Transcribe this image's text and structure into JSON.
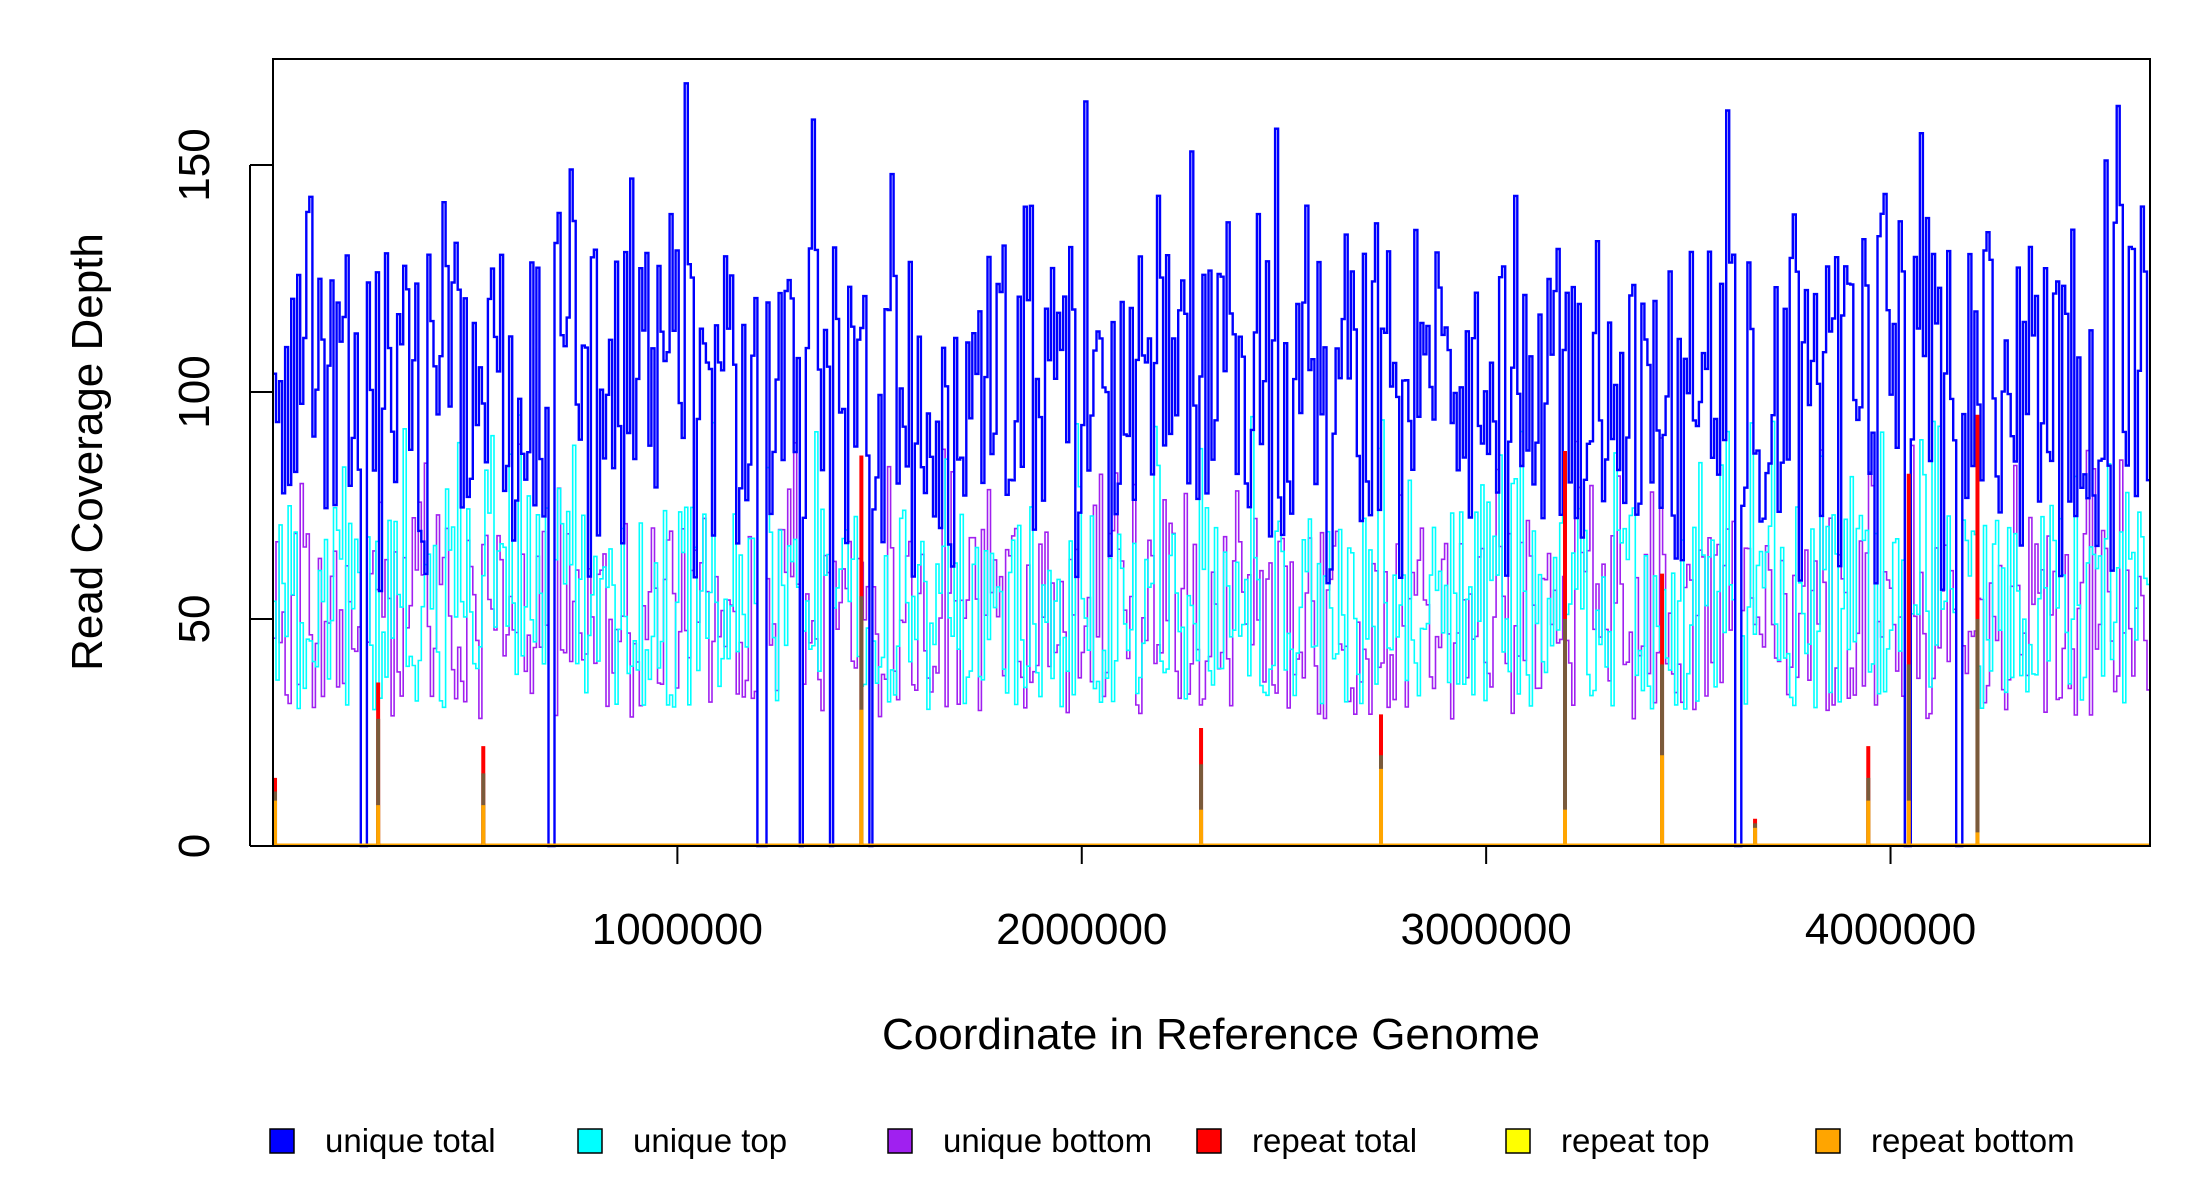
{
  "chart_data": {
    "type": "line",
    "step": true,
    "xlabel": "Coordinate in Reference Genome",
    "ylabel": "Read Coverage Depth",
    "xlim": [
      1,
      4641652
    ],
    "ylim": [
      0,
      170
    ],
    "x_ticks": [
      1000000,
      2000000,
      3000000,
      4000000
    ],
    "x_tick_labels": [
      "1000000",
      "2000000",
      "3000000",
      "4000000"
    ],
    "y_ticks": [
      0,
      50,
      100,
      150
    ],
    "y_tick_labels": [
      "0",
      "50",
      "100",
      "150"
    ],
    "grid": false,
    "legend_position": "bottom",
    "series": [
      {
        "name": "unique total",
        "color": "#0000FF",
        "style": "step"
      },
      {
        "name": "unique top",
        "color": "#00FFFF",
        "style": "step"
      },
      {
        "name": "unique bottom",
        "color": "#A020F0",
        "style": "step"
      },
      {
        "name": "repeat total",
        "color": "#FF0000",
        "style": "spikes"
      },
      {
        "name": "repeat top",
        "color": "#FFFF00",
        "style": "spikes"
      },
      {
        "name": "repeat bottom",
        "color": "#FFA500",
        "style": "spikes"
      }
    ],
    "dropouts": [
      {
        "x": [
          215000,
          225000
        ]
      },
      {
        "x": [
          680000,
          690000
        ]
      },
      {
        "x": [
          1195000,
          1215000
        ]
      },
      {
        "x": [
          1300000,
          1310000
        ]
      },
      {
        "x": [
          1375000,
          1385000
        ]
      },
      {
        "x": [
          1470000,
          1480000
        ]
      },
      {
        "x": [
          3610000,
          3625000
        ]
      },
      {
        "x": [
          4035000,
          4048000
        ]
      },
      {
        "x": [
          4160000,
          4175000
        ]
      }
    ],
    "total_peaks": [
      {
        "x": 1020000,
        "y": 168
      },
      {
        "x": 2010000,
        "y": 164
      },
      {
        "x": 3590000,
        "y": 162
      },
      {
        "x": 4560000,
        "y": 163
      },
      {
        "x": 1330000,
        "y": 160
      },
      {
        "x": 2480000,
        "y": 158
      },
      {
        "x": 4070000,
        "y": 157
      },
      {
        "x": 2270000,
        "y": 153
      },
      {
        "x": 4530000,
        "y": 151
      },
      {
        "x": 730000,
        "y": 149
      },
      {
        "x": 1530000,
        "y": 148
      },
      {
        "x": 880000,
        "y": 147
      }
    ],
    "repeat_spikes": [
      {
        "x": 5000,
        "total": 15,
        "top": 12,
        "bottom": 10
      },
      {
        "x": 260000,
        "total": 36,
        "top": 28,
        "bottom": 9
      },
      {
        "x": 520000,
        "total": 22,
        "top": 16,
        "bottom": 9
      },
      {
        "x": 1455000,
        "total": 86,
        "top": 55,
        "bottom": 30
      },
      {
        "x": 2295000,
        "total": 26,
        "top": 18,
        "bottom": 8
      },
      {
        "x": 2740000,
        "total": 29,
        "top": 20,
        "bottom": 17
      },
      {
        "x": 3195000,
        "total": 87,
        "top": 50,
        "bottom": 8
      },
      {
        "x": 3435000,
        "total": 60,
        "top": 40,
        "bottom": 20
      },
      {
        "x": 3665000,
        "total": 6,
        "top": 5,
        "bottom": 4
      },
      {
        "x": 3945000,
        "total": 22,
        "top": 15,
        "bottom": 10
      },
      {
        "x": 4045000,
        "total": 82,
        "top": 40,
        "bottom": 10
      },
      {
        "x": 4215000,
        "total": 95,
        "top": 50,
        "bottom": 3
      }
    ],
    "unique_total_band": [
      60,
      140
    ],
    "unique_strand_band": [
      25,
      90
    ]
  }
}
